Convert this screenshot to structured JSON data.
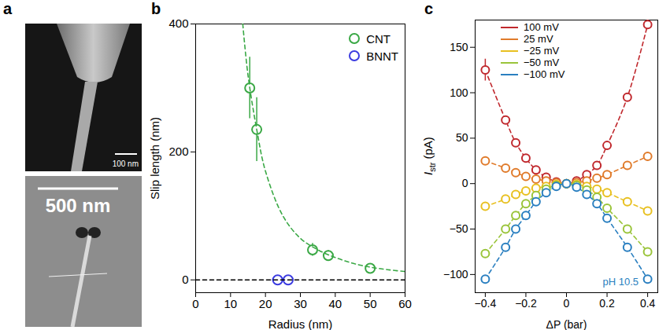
{
  "figure": {
    "panel_a": {
      "panel_label": "a",
      "images": [
        {
          "scale_bar": "100 nm"
        },
        {
          "scale_bar": "500 nm"
        }
      ]
    }
  },
  "chart_data": [
    {
      "panel_label": "b",
      "type": "scatter",
      "xlabel": "Radius (nm)",
      "ylabel": "Slip length (nm)",
      "xlim": [
        0,
        60
      ],
      "ylim": [
        -20,
        400
      ],
      "xticks": [
        0,
        10,
        20,
        30,
        40,
        50,
        60
      ],
      "yticks": [
        0,
        200,
        400
      ],
      "legend": "top-right",
      "series": [
        {
          "name": "CNT",
          "color": "#3aa845",
          "marker": "open circle",
          "x": [
            15.5,
            17.5,
            33.5,
            38,
            50
          ],
          "values": [
            300,
            235,
            47,
            38,
            18
          ],
          "errors": [
            48,
            50,
            10,
            8,
            4
          ]
        },
        {
          "name": "BNNT",
          "color": "#3b3be0",
          "marker": "open circle",
          "x": [
            23.5,
            26.5
          ],
          "values": [
            0,
            0
          ],
          "x_errors": [
            1.5,
            1.5
          ]
        },
        {
          "type": "line",
          "line_style": "dashed",
          "color": "#3aa845",
          "x": [
            13.5,
            15,
            17.5,
            20,
            25,
            30,
            35,
            40,
            45,
            50,
            55,
            60
          ],
          "values": [
            400,
            320,
            235,
            170,
            100,
            65,
            47,
            35,
            26,
            20,
            16,
            13
          ]
        },
        {
          "type": "line",
          "line_style": "dashed",
          "color": "#000000",
          "x": [
            0,
            60
          ],
          "values": [
            0,
            0
          ]
        }
      ]
    },
    {
      "panel_label": "c",
      "type": "scatter",
      "xlabel": "ΔP (bar)",
      "ylabel": {
        "text": "I",
        "subscript": "str",
        "unit": "(pA)"
      },
      "xlim": [
        -0.45,
        0.45
      ],
      "ylim": [
        -120,
        180
      ],
      "xticks": [
        -0.4,
        -0.2,
        0,
        0.2,
        0.4
      ],
      "yticks": [
        -100,
        -50,
        0,
        50,
        100,
        150
      ],
      "legend": "top-left",
      "annotations": [
        {
          "text": "pH 10.5",
          "color": "#2a7fc0"
        }
      ],
      "x": [
        -0.4,
        -0.3,
        -0.25,
        -0.2,
        -0.15,
        -0.1,
        -0.05,
        0,
        0.05,
        0.1,
        0.15,
        0.2,
        0.3,
        0.4
      ],
      "series": [
        {
          "name": "100 mV",
          "color": "#c0282d",
          "marker": "open circle",
          "line_style": "dashed",
          "values": [
            125,
            70,
            45,
            28,
            15,
            7,
            2,
            0,
            3,
            10,
            20,
            42,
            95,
            175
          ],
          "errors": [
            12,
            4,
            3,
            3,
            2,
            2,
            2,
            2,
            2,
            2,
            2,
            3,
            4,
            5
          ]
        },
        {
          "name": "25 mV",
          "color": "#e07b2b",
          "marker": "open circle",
          "line_style": "dashed",
          "values": [
            25,
            17,
            12,
            8,
            5,
            3,
            1,
            0,
            1,
            3,
            6,
            10,
            20,
            30
          ],
          "errors": [
            2,
            2,
            2,
            2,
            2,
            2,
            2,
            2,
            2,
            2,
            2,
            2,
            2,
            2
          ]
        },
        {
          "name": "−25 mV",
          "color": "#e8c020",
          "marker": "open circle",
          "line_style": "dashed",
          "values": [
            -25,
            -17,
            -12,
            -8,
            -5,
            -3,
            -1,
            0,
            -1,
            -3,
            -6,
            -10,
            -20,
            -30
          ],
          "errors": [
            2,
            2,
            2,
            2,
            2,
            2,
            2,
            2,
            2,
            2,
            2,
            2,
            2,
            2
          ]
        },
        {
          "name": "−50 mV",
          "color": "#9ac43a",
          "marker": "open circle",
          "line_style": "dashed",
          "values": [
            -77,
            -50,
            -35,
            -22,
            -13,
            -6,
            -2,
            0,
            -2,
            -7,
            -15,
            -27,
            -50,
            -75
          ],
          "errors": [
            3,
            3,
            2,
            2,
            2,
            2,
            2,
            2,
            2,
            2,
            2,
            2,
            3,
            3
          ]
        },
        {
          "name": "−100 mV",
          "color": "#2a7fc0",
          "marker": "open circle",
          "line_style": "dashed",
          "values": [
            -105,
            -70,
            -50,
            -35,
            -20,
            -10,
            -3,
            0,
            -4,
            -12,
            -22,
            -38,
            -70,
            -105
          ],
          "errors": [
            4,
            3,
            3,
            2,
            2,
            2,
            2,
            2,
            2,
            2,
            2,
            2,
            3,
            4
          ]
        }
      ]
    }
  ]
}
